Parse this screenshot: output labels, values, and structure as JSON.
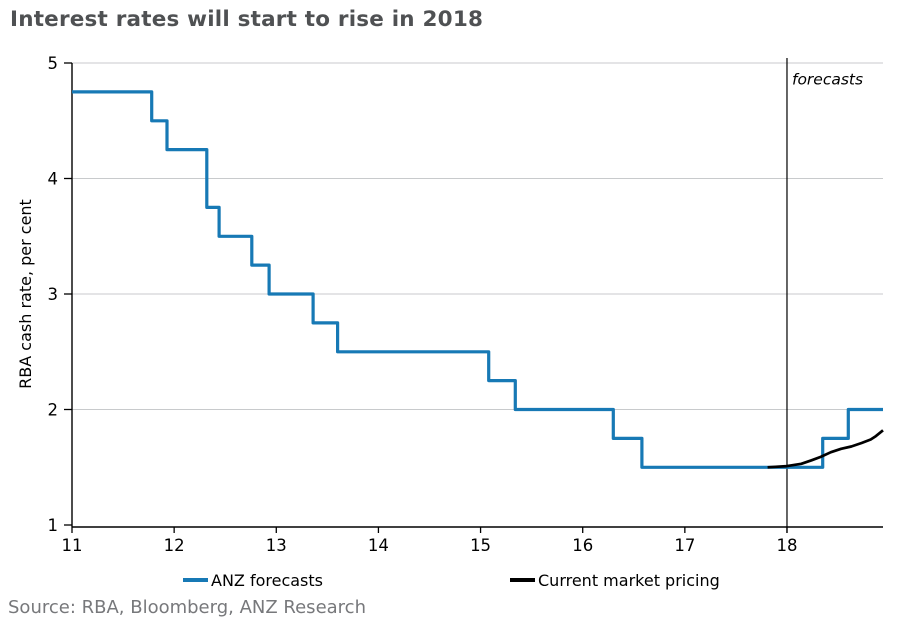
{
  "title": "Interest rates will start to rise in 2018",
  "source": "Source: RBA, Bloomberg, ANZ Research",
  "colors": {
    "anz_blue": "#1779b5",
    "market_black": "#000000",
    "title_gray": "#4f5153",
    "source_gray": "#77787b",
    "grid_gray": "#c8cacc",
    "axis_black": "#000000"
  },
  "legend": [
    {
      "label": "ANZ forecasts",
      "color": "#1779b5"
    },
    {
      "label": "Current market pricing",
      "color": "#000000"
    }
  ],
  "chart_data": {
    "type": "line",
    "title": "Interest rates will start to rise in 2018",
    "xlabel": "",
    "ylabel": "RBA cash rate, per cent",
    "xlim": [
      11,
      18.94
    ],
    "ylim": [
      1,
      5
    ],
    "x_ticks": [
      11,
      12,
      13,
      14,
      15,
      16,
      17,
      18
    ],
    "y_ticks": [
      1,
      2,
      3,
      4,
      5
    ],
    "grid": "horizontal",
    "legend_position": "bottom",
    "annotation": {
      "label": "forecasts",
      "x": 18,
      "y": 4.85,
      "style": "italic"
    },
    "forecast_divider_x": 18,
    "series": [
      {
        "id": "anz-forecasts",
        "name": "ANZ forecasts",
        "color": "#1779b5",
        "width": 3.2,
        "style": "step-after",
        "points": [
          [
            11.0,
            4.75
          ],
          [
            11.78,
            4.5
          ],
          [
            11.93,
            4.25
          ],
          [
            12.32,
            3.75
          ],
          [
            12.44,
            3.5
          ],
          [
            12.76,
            3.25
          ],
          [
            12.93,
            3.0
          ],
          [
            13.36,
            2.75
          ],
          [
            13.6,
            2.5
          ],
          [
            15.08,
            2.25
          ],
          [
            15.34,
            2.0
          ],
          [
            16.3,
            1.75
          ],
          [
            16.58,
            1.5
          ],
          [
            18.35,
            1.75
          ],
          [
            18.6,
            2.0
          ],
          [
            18.94,
            2.0
          ]
        ]
      },
      {
        "id": "current-market-pricing",
        "name": "Current market pricing",
        "color": "#000000",
        "width": 2.7,
        "style": "linear",
        "points": [
          [
            17.81,
            1.5
          ],
          [
            18.0,
            1.51
          ],
          [
            18.14,
            1.53
          ],
          [
            18.24,
            1.56
          ],
          [
            18.33,
            1.59
          ],
          [
            18.43,
            1.63
          ],
          [
            18.53,
            1.66
          ],
          [
            18.63,
            1.68
          ],
          [
            18.73,
            1.71
          ],
          [
            18.82,
            1.74
          ],
          [
            18.87,
            1.77
          ],
          [
            18.94,
            1.82
          ]
        ]
      }
    ]
  }
}
